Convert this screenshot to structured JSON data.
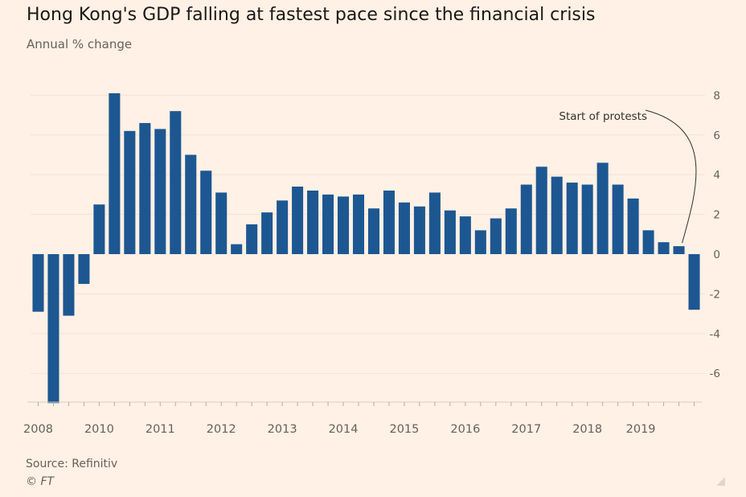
{
  "chart_data": {
    "type": "bar",
    "title": "Hong Kong's GDP falling at fastest pace since the financial crisis",
    "subtitle": "Annual % change",
    "ylabel": "Annual % change",
    "xlabel": "",
    "ylim": [
      -7.5,
      8.5
    ],
    "yticks": [
      8,
      6,
      4,
      2,
      0,
      -2,
      -4,
      -6
    ],
    "ytick_labels": [
      "8",
      "6",
      "4",
      "2",
      "0",
      "-2",
      "-4",
      "-6"
    ],
    "xtick_labels": [
      {
        "label": "2008",
        "index": 0.5
      },
      {
        "label": "2010",
        "index": 4.5
      },
      {
        "label": "2011",
        "index": 8.5
      },
      {
        "label": "2012",
        "index": 12.5
      },
      {
        "label": "2013",
        "index": 16.5
      },
      {
        "label": "2014",
        "index": 20.5
      },
      {
        "label": "2015",
        "index": 24.5
      },
      {
        "label": "2016",
        "index": 28.5
      },
      {
        "label": "2017",
        "index": 32.5
      },
      {
        "label": "2018",
        "index": 36.5
      },
      {
        "label": "2019",
        "index": 40
      }
    ],
    "categories": [
      "2008 Q4",
      "2009 Q1",
      "2009 Q2",
      "2009 Q3",
      "2009 Q4",
      "2010 Q1",
      "2010 Q2",
      "2010 Q3",
      "2010 Q4",
      "2011 Q1",
      "2011 Q2",
      "2011 Q3",
      "2011 Q4",
      "2012 Q1",
      "2012 Q2",
      "2012 Q3",
      "2012 Q4",
      "2013 Q1",
      "2013 Q2",
      "2013 Q3",
      "2013 Q4",
      "2014 Q1",
      "2014 Q2",
      "2014 Q3",
      "2014 Q4",
      "2015 Q1",
      "2015 Q2",
      "2015 Q3",
      "2015 Q4",
      "2016 Q1",
      "2016 Q2",
      "2016 Q3",
      "2016 Q4",
      "2017 Q1",
      "2017 Q2",
      "2017 Q3",
      "2017 Q4",
      "2018 Q1",
      "2018 Q2",
      "2018 Q3",
      "2018 Q4",
      "2019 Q1",
      "2019 Q2",
      "2019 Q3"
    ],
    "values": [
      -2.9,
      -7.5,
      -3.1,
      -1.5,
      2.5,
      8.1,
      6.2,
      6.6,
      6.3,
      7.2,
      5.0,
      4.2,
      3.1,
      0.5,
      1.5,
      2.1,
      2.7,
      3.4,
      3.2,
      3.0,
      2.9,
      3.0,
      2.3,
      3.2,
      2.6,
      2.4,
      3.1,
      2.2,
      1.9,
      1.2,
      1.8,
      2.3,
      3.5,
      4.4,
      3.9,
      3.6,
      3.5,
      4.6,
      3.5,
      2.8,
      1.2,
      0.6,
      0.4,
      -2.8
    ],
    "bar_color": "#1d5792",
    "annotation": {
      "text": "Start of protests",
      "index": 42
    },
    "grid": true
  },
  "source": "Source: Refinitiv",
  "copyright": "© FT"
}
